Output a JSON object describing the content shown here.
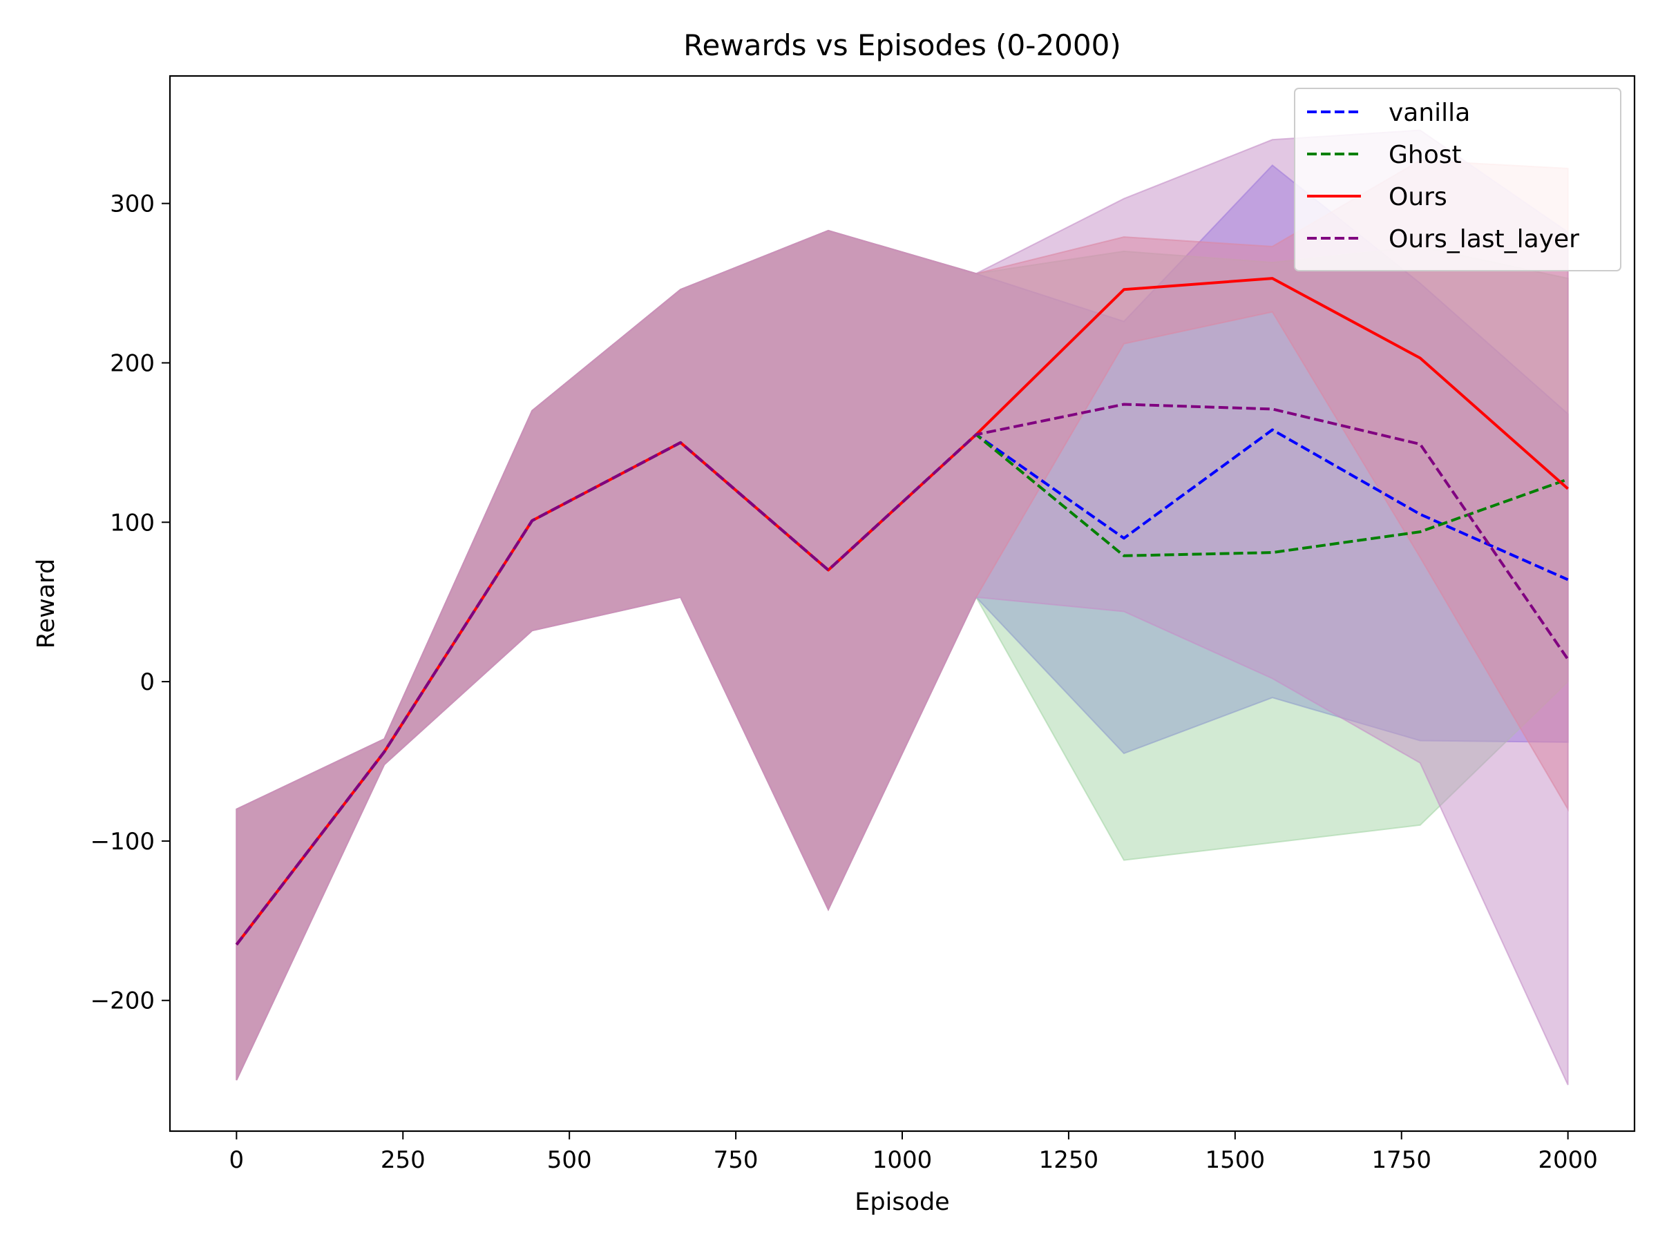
{
  "chart_data": {
    "type": "line",
    "title": "Rewards vs Episodes (0-2000)",
    "xlabel": "Episode",
    "ylabel": "Reward",
    "xlim": [
      -100,
      2100
    ],
    "ylim": [
      -282,
      380
    ],
    "xticks": [
      0,
      250,
      500,
      750,
      1000,
      1250,
      1500,
      1750,
      2000
    ],
    "yticks": [
      -200,
      -100,
      0,
      100,
      200,
      300
    ],
    "grid": false,
    "legend_position": "top-right",
    "x": [
      0,
      222,
      444,
      667,
      889,
      1111,
      1333,
      1556,
      1778,
      2000
    ],
    "series": [
      {
        "name": "vanilla",
        "color": "#0000ff",
        "line_style": "dashed",
        "band_color": "#7b68ee",
        "values": [
          -165,
          -44,
          101,
          150,
          70,
          155,
          90,
          158,
          105,
          64
        ],
        "upper": [
          -80,
          -36,
          170,
          246,
          283,
          256,
          226,
          324,
          250,
          168
        ],
        "lower": [
          -250,
          -52,
          32,
          53,
          -143,
          53,
          -45,
          -10,
          -37,
          -38
        ]
      },
      {
        "name": "Ghost",
        "color": "#008000",
        "line_style": "dashed",
        "band_color": "#a5d6a7",
        "values": [
          -165,
          -44,
          101,
          150,
          70,
          155,
          79,
          81,
          94,
          127
        ],
        "upper": [
          -80,
          -36,
          170,
          246,
          283,
          256,
          270,
          263,
          273,
          253
        ],
        "lower": [
          -250,
          -52,
          32,
          53,
          -143,
          53,
          -112,
          -101,
          -90,
          0
        ]
      },
      {
        "name": "Ours",
        "color": "#ff0000",
        "line_style": "solid",
        "band_color": "#f08080",
        "values": [
          -165,
          -44,
          101,
          150,
          70,
          155,
          246,
          253,
          203,
          121
        ],
        "upper": [
          -80,
          -36,
          170,
          246,
          283,
          256,
          279,
          273,
          327,
          322
        ],
        "lower": [
          -250,
          -52,
          32,
          53,
          -143,
          53,
          212,
          232,
          78,
          -80
        ]
      },
      {
        "name": "Ours_last_layer",
        "color": "#800080",
        "line_style": "dashed",
        "band_color": "#c590c8",
        "values": [
          -165,
          -44,
          101,
          150,
          70,
          155,
          174,
          171,
          149,
          14
        ],
        "upper": [
          -80,
          -36,
          170,
          246,
          283,
          256,
          303,
          340,
          346,
          282
        ],
        "lower": [
          -250,
          -52,
          32,
          53,
          -143,
          53,
          44,
          2,
          -51,
          -253
        ]
      }
    ]
  }
}
